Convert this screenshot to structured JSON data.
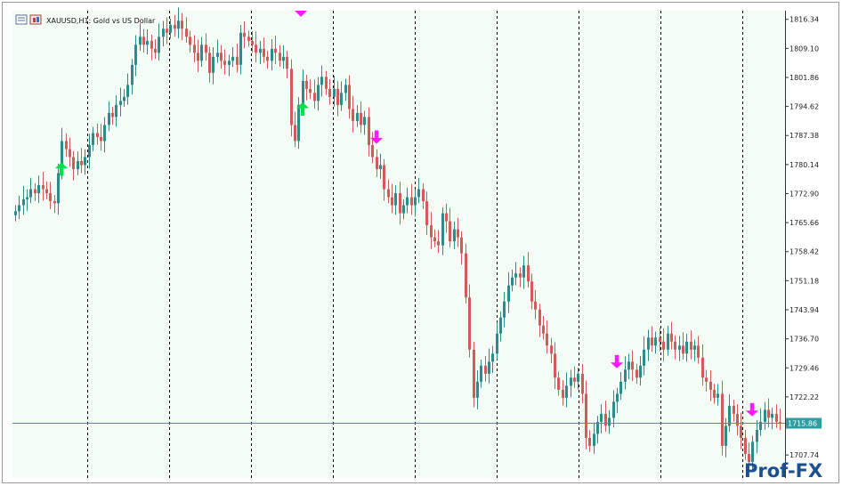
{
  "chart_data": {
    "type": "candlestick",
    "symbol": "XAUUSD,H1",
    "description": "Gold vs US Dollar",
    "title": "XAUUSD,H1:  Gold vs US Dollar",
    "ylim": [
      1702.0,
      1818.5
    ],
    "y_ticks": [
      "1816.34",
      "1809.10",
      "1801.86",
      "1794.62",
      "1787.38",
      "1780.14",
      "1772.90",
      "1765.66",
      "1758.42",
      "1751.18",
      "1743.94",
      "1736.70",
      "1729.46",
      "1722.22",
      "1707.74"
    ],
    "current_price": "1715.86",
    "grid": "vertical-dashed",
    "colors": {
      "background": "#f3fdf5",
      "up": "#2e8b8b",
      "down": "#d45a5a",
      "buy_arrow": "#00e04a",
      "sell_arrow": "#ff19ff",
      "price_line": "#2e9ea0",
      "grid": "#000000"
    },
    "closes": [
      1768.5,
      1770,
      1771.5,
      1772,
      1774,
      1773,
      1775,
      1774,
      1773,
      1771,
      1770.5,
      1778,
      1786,
      1784,
      1782,
      1779,
      1781,
      1780,
      1782,
      1785,
      1788,
      1787,
      1786,
      1790,
      1793,
      1792,
      1795,
      1796,
      1797,
      1800,
      1805,
      1810,
      1812,
      1810,
      1811,
      1809,
      1808,
      1812,
      1814,
      1813,
      1815,
      1814,
      1816,
      1814,
      1812,
      1810,
      1808,
      1806,
      1810,
      1808,
      1803,
      1807,
      1808,
      1806,
      1805,
      1806,
      1807,
      1805,
      1813,
      1812,
      1811,
      1810,
      1808,
      1809,
      1807,
      1806,
      1809,
      1808,
      1806,
      1807,
      1804,
      1790,
      1786,
      1795,
      1801,
      1799,
      1798,
      1796,
      1800,
      1802,
      1799,
      1797,
      1799,
      1795,
      1798,
      1800,
      1794,
      1791,
      1793,
      1790,
      1792,
      1785,
      1782,
      1779,
      1780,
      1774,
      1772,
      1770,
      1773,
      1768,
      1770,
      1772,
      1770,
      1772,
      1774,
      1771,
      1765,
      1762,
      1761,
      1760,
      1768,
      1766,
      1761,
      1764,
      1762,
      1758,
      1747,
      1734,
      1722,
      1726,
      1730,
      1728,
      1731,
      1733,
      1738,
      1742,
      1746,
      1750,
      1752,
      1753,
      1752,
      1755,
      1751,
      1746,
      1744,
      1740,
      1738,
      1735,
      1733,
      1727,
      1724,
      1722,
      1725,
      1727,
      1726,
      1728,
      1723,
      1712,
      1710,
      1713,
      1716,
      1718,
      1715,
      1717,
      1721,
      1723,
      1726,
      1729,
      1731,
      1729,
      1727,
      1730,
      1734,
      1737,
      1735,
      1737,
      1736,
      1734,
      1738,
      1736,
      1734,
      1735,
      1733,
      1736,
      1734,
      1735,
      1732,
      1727,
      1726,
      1724,
      1722,
      1723,
      1710,
      1715,
      1720,
      1718,
      1715,
      1712,
      1708,
      1706,
      1711,
      1714,
      1716,
      1719,
      1717,
      1718,
      1716,
      1715.86
    ],
    "buy_signals": [
      12,
      74
    ],
    "sell_signals": [
      93,
      155,
      190
    ]
  },
  "watermark": {
    "text": "Prof-FX"
  }
}
